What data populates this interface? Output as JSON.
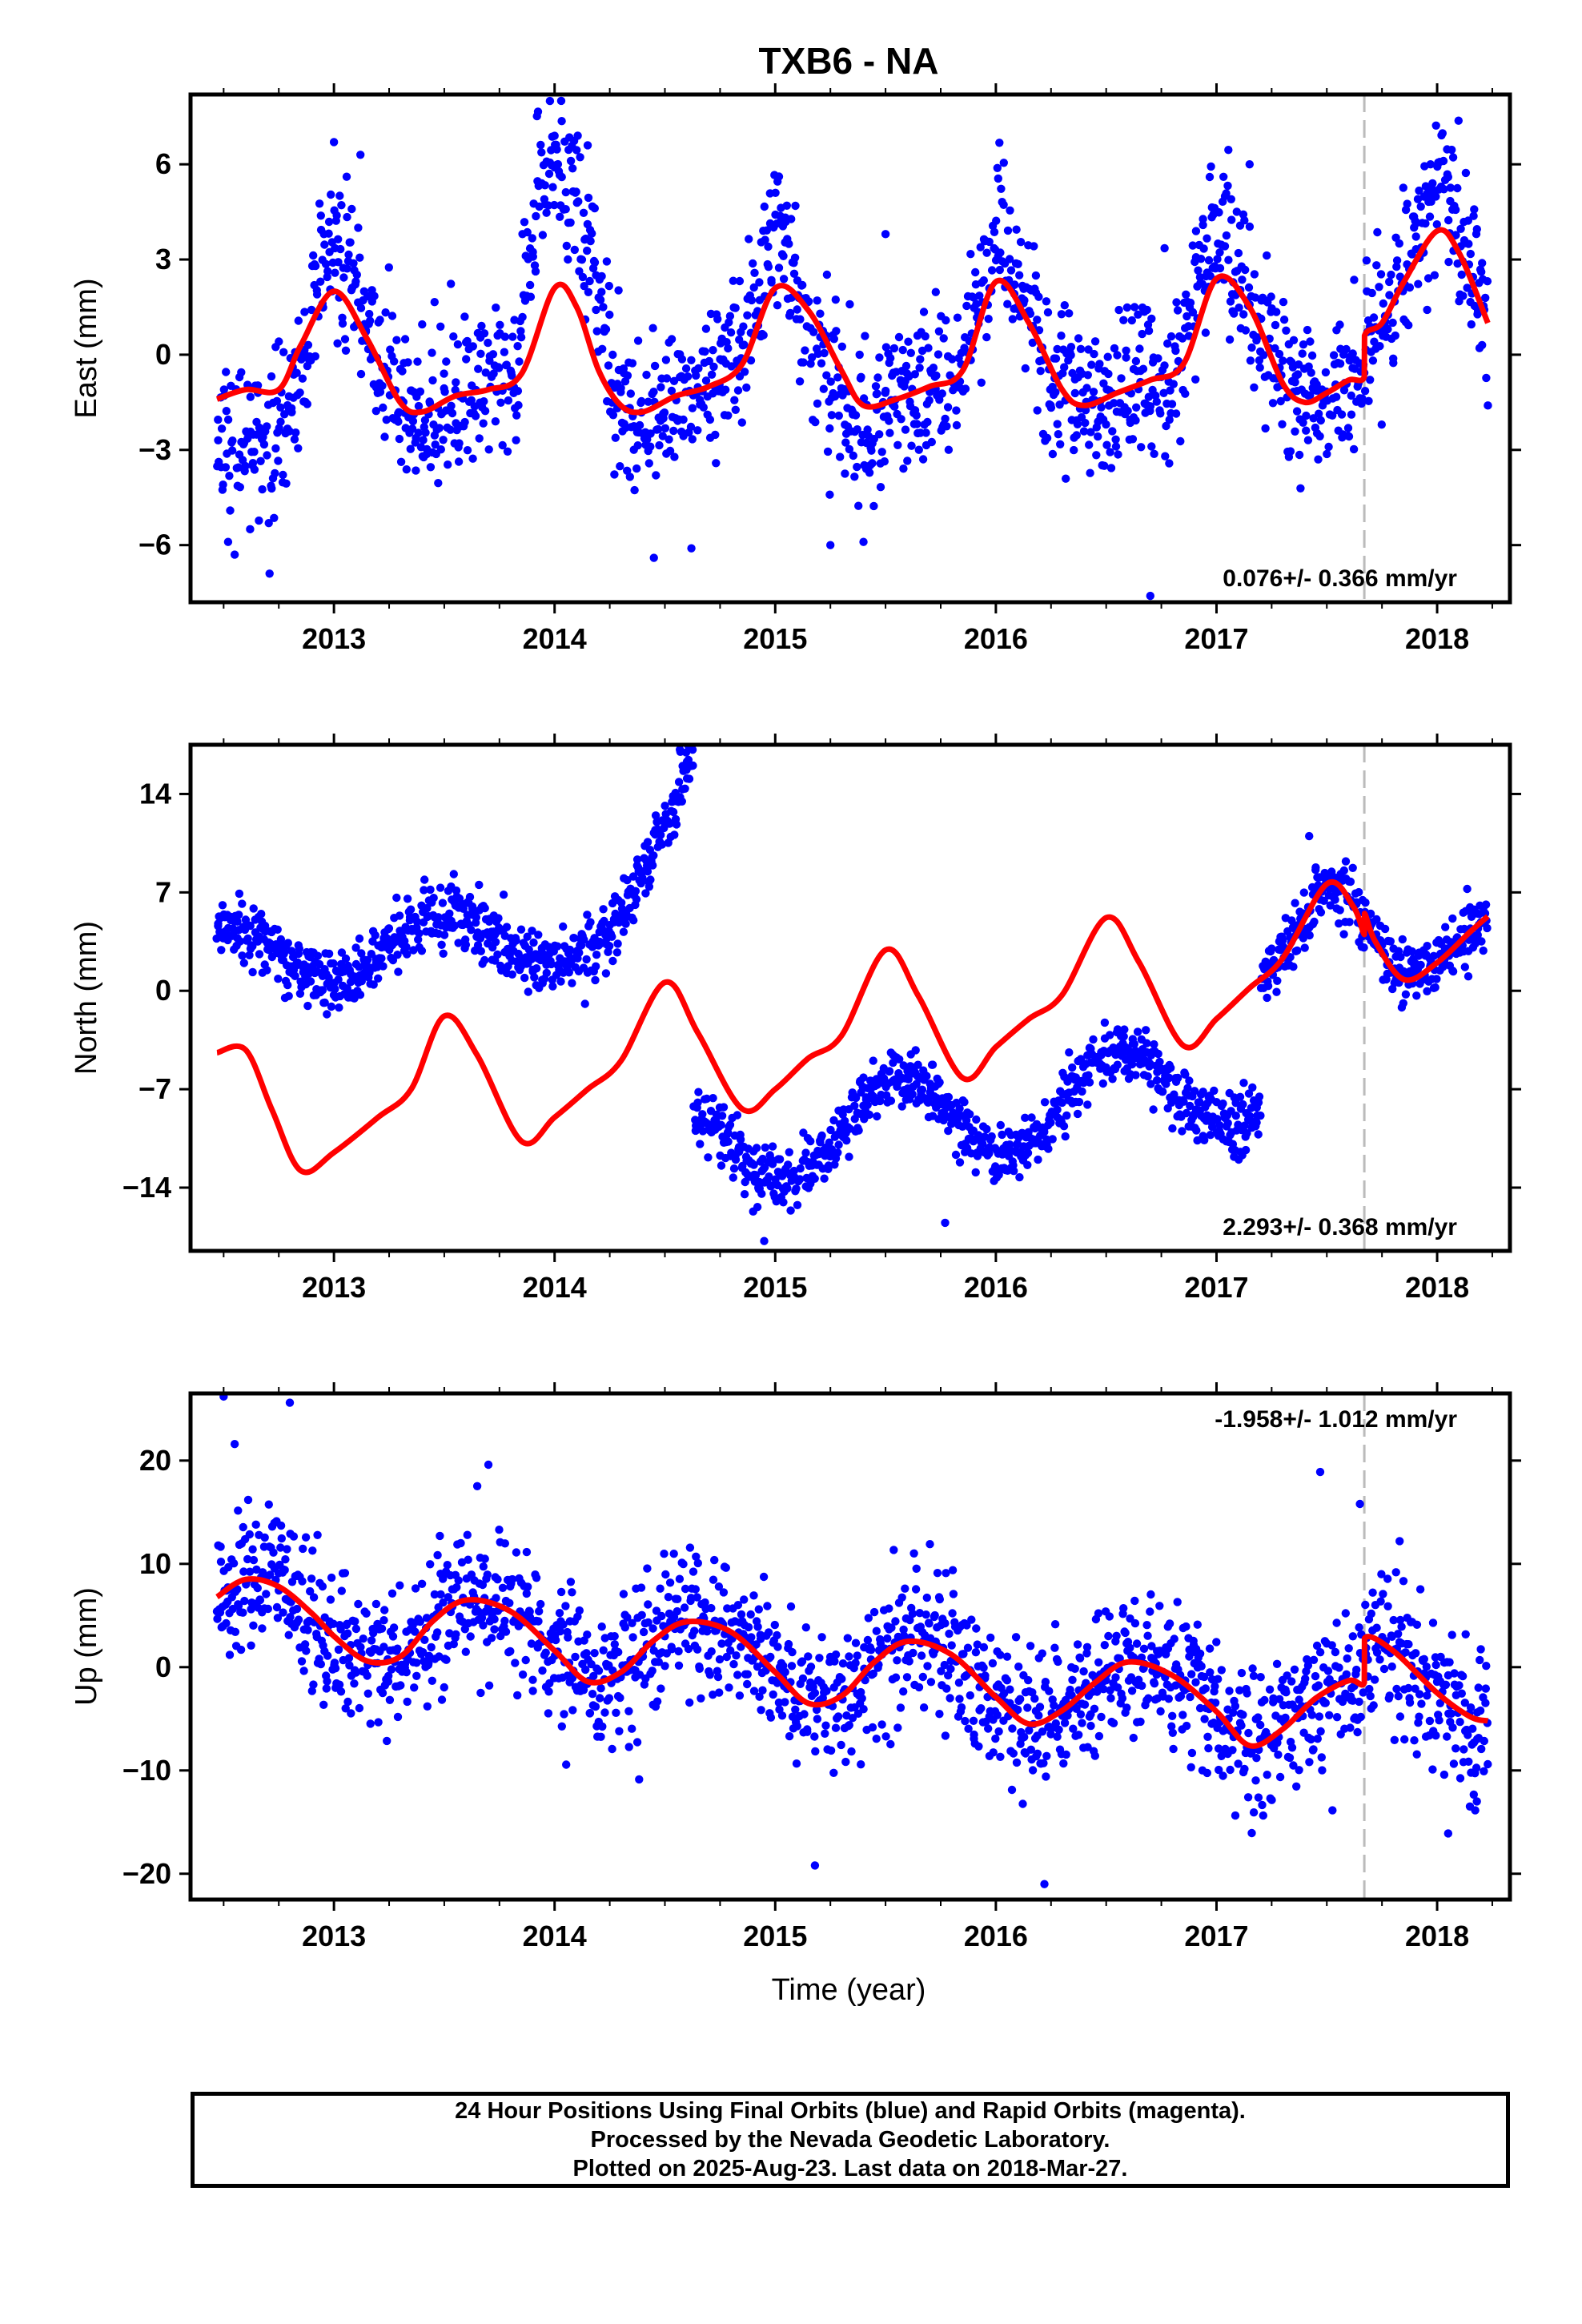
{
  "title": "TXB6 - NA",
  "xlabel": "Time (year)",
  "colors": {
    "final_orbits": "#0000ff",
    "model": "#ff0000",
    "offset_line": "#bbbbbb",
    "axes": "#000000"
  },
  "chart_data": [
    {
      "type": "scatter",
      "panel": "east",
      "ylabel": "East (mm)",
      "xlim": [
        2012.35,
        2018.33
      ],
      "ylim": [
        -7.8,
        8.2
      ],
      "yticks": [
        6,
        3,
        0,
        -3,
        -6
      ],
      "ytick_labels": [
        "6",
        "3",
        "0",
        "−3",
        "−6"
      ],
      "xticks": [
        2013,
        2014,
        2015,
        2016,
        2017,
        2018
      ],
      "xtick_labels": [
        "2013",
        "2014",
        "2015",
        "2016",
        "2017",
        "2018"
      ],
      "rate_label": "0.076+/- 0.366 mm/yr",
      "offset_epoch": 2017.67,
      "data_start": 2012.47,
      "data_end": 2018.23,
      "model_curve": {
        "name": "",
        "x": [
          2012.47,
          2012.6,
          2012.75,
          2012.85,
          2013.0,
          2013.15,
          2013.3,
          2013.4,
          2013.55,
          2013.7,
          2013.85,
          2014.0,
          2014.1,
          2014.2,
          2014.3,
          2014.4,
          2014.55,
          2014.7,
          2014.85,
          2015.0,
          2015.15,
          2015.3,
          2015.4,
          2015.55,
          2015.7,
          2015.85,
          2016.0,
          2016.15,
          2016.3,
          2016.4,
          2016.55,
          2016.7,
          2016.85,
          2017.0,
          2017.15,
          2017.3,
          2017.4,
          2017.5,
          2017.6,
          2017.67,
          2017.671,
          2017.75,
          2017.85,
          2018.0,
          2018.1,
          2018.23
        ],
        "y": [
          -1.4,
          -1.1,
          -1.1,
          0.3,
          2.0,
          0.5,
          -1.5,
          -1.8,
          -1.3,
          -1.1,
          -0.6,
          2.1,
          1.5,
          -0.5,
          -1.6,
          -1.8,
          -1.3,
          -1.0,
          -0.3,
          2.1,
          1.4,
          -0.5,
          -1.6,
          -1.4,
          -1.0,
          -0.5,
          2.3,
          1.0,
          -1.1,
          -1.6,
          -1.2,
          -0.8,
          -0.3,
          2.4,
          1.5,
          -0.9,
          -1.5,
          -1.2,
          -0.8,
          -0.7,
          0.6,
          1.0,
          2.3,
          3.9,
          3.2,
          1.0
        ]
      },
      "data_points": {
        "name": "",
        "observed": [
          {
            "x": 2012.55,
            "y": -6.3
          },
          {
            "x": 2012.62,
            "y": -5.5
          },
          {
            "x": 2013.0,
            "y": 6.7
          },
          {
            "x": 2013.12,
            "y": 6.3
          },
          {
            "x": 2014.0,
            "y": 6.9
          },
          {
            "x": 2014.03,
            "y": 8.0
          },
          {
            "x": 2014.15,
            "y": 6.6
          },
          {
            "x": 2014.45,
            "y": -6.4
          },
          {
            "x": 2014.62,
            "y": -6.1
          },
          {
            "x": 2015.25,
            "y": -6.0
          },
          {
            "x": 2015.4,
            "y": -5.9
          },
          {
            "x": 2015.5,
            "y": 3.8
          },
          {
            "x": 2016.7,
            "y": -7.6
          },
          {
            "x": 2017.15,
            "y": 6.0
          },
          {
            "x": 2017.97,
            "y": 6.0
          },
          {
            "x": 2018.05,
            "y": 5.6
          },
          {
            "x": 2018.23,
            "y": -1.6
          }
        ],
        "scatter_sd": 1.2
      }
    },
    {
      "type": "scatter",
      "panel": "north",
      "ylabel": "North (mm)",
      "xlim": [
        2012.35,
        2018.33
      ],
      "ylim": [
        -18.5,
        17.5
      ],
      "yticks": [
        14,
        7,
        0,
        -7,
        -14
      ],
      "ytick_labels": [
        "14",
        "7",
        "0",
        "−7",
        "−14"
      ],
      "xticks": [
        2013,
        2014,
        2015,
        2016,
        2017,
        2018
      ],
      "xtick_labels": [
        "2013",
        "2014",
        "2015",
        "2016",
        "2017",
        "2018"
      ],
      "rate_label": "2.293+/- 0.368 mm/yr",
      "offset_epoch": 2017.67,
      "data_start": 2012.47,
      "data_end": 2018.23,
      "model_curve": {
        "name": "",
        "x": [
          2012.47,
          2012.6,
          2012.72,
          2012.85,
          2013.0,
          2013.2,
          2013.35,
          2013.5,
          2013.65,
          2013.85,
          2014.0,
          2014.15,
          2014.3,
          2014.5,
          2014.65,
          2014.85,
          2015.0,
          2015.15,
          2015.3,
          2015.5,
          2015.65,
          2015.85,
          2016.0,
          2016.15,
          2016.3,
          2016.5,
          2016.65,
          2016.85,
          2017.0,
          2017.15,
          2017.3,
          2017.5,
          2017.62,
          2017.67,
          2017.671,
          2017.72,
          2017.85,
          2018.0,
          2018.15,
          2018.23
        ],
        "y": [
          -4.4,
          -4.2,
          -8.5,
          -12.8,
          -11.5,
          -9.0,
          -7.0,
          -1.8,
          -4.6,
          -10.7,
          -9.0,
          -7.0,
          -5.0,
          0.6,
          -3.0,
          -8.4,
          -7.0,
          -4.8,
          -3.2,
          2.9,
          -0.4,
          -6.2,
          -4.0,
          -2.0,
          -0.3,
          5.2,
          2.0,
          -3.9,
          -2.0,
          0.2,
          2.3,
          7.6,
          6.0,
          4.0,
          5.5,
          3.5,
          0.8,
          2.0,
          4.2,
          5.3
        ]
      },
      "data_points": {
        "name": "",
        "observed": [
          {
            "x": 2014.57,
            "y": 17.0
          },
          {
            "x": 2014.6,
            "y": 16.3
          },
          {
            "x": 2014.6,
            "y": 15.1
          },
          {
            "x": 2014.95,
            "y": -17.8
          },
          {
            "x": 2014.9,
            "y": -15.7
          },
          {
            "x": 2015.77,
            "y": -16.5
          },
          {
            "x": 2017.42,
            "y": 11.0
          }
        ],
        "scatter_sd": 1.1
      }
    },
    {
      "type": "scatter",
      "panel": "up",
      "ylabel": "Up (mm)",
      "xlim": [
        2012.35,
        2018.33
      ],
      "ylim": [
        -22.5,
        26.5
      ],
      "yticks": [
        20,
        10,
        0,
        -10,
        -20
      ],
      "ytick_labels": [
        "20",
        "10",
        "0",
        "−10",
        "−20"
      ],
      "xticks": [
        2013,
        2014,
        2015,
        2016,
        2017,
        2018
      ],
      "xtick_labels": [
        "2013",
        "2014",
        "2015",
        "2016",
        "2017",
        "2018"
      ],
      "rate_label": "-1.958+/- 1.012 mm/yr",
      "offset_epoch": 2017.67,
      "data_start": 2012.47,
      "data_end": 2018.23,
      "model_curve": {
        "name": "",
        "x": [
          2012.47,
          2012.6,
          2012.75,
          2012.9,
          2013.0,
          2013.15,
          2013.3,
          2013.45,
          2013.6,
          2013.8,
          2014.0,
          2014.15,
          2014.3,
          2014.45,
          2014.6,
          2014.8,
          2015.0,
          2015.15,
          2015.3,
          2015.45,
          2015.6,
          2015.8,
          2016.0,
          2016.15,
          2016.3,
          2016.45,
          2016.6,
          2016.8,
          2017.0,
          2017.15,
          2017.3,
          2017.45,
          2017.6,
          2017.67,
          2017.671,
          2017.8,
          2018.0,
          2018.15,
          2018.23
        ],
        "y": [
          6.8,
          8.5,
          7.8,
          5.2,
          3.0,
          0.6,
          1.0,
          4.5,
          6.5,
          5.4,
          1.6,
          -1.4,
          -0.5,
          2.6,
          4.4,
          3.4,
          -0.5,
          -3.5,
          -2.8,
          0.5,
          2.5,
          1.2,
          -2.9,
          -5.5,
          -4.2,
          -1.5,
          0.5,
          -0.8,
          -4.3,
          -7.6,
          -6.0,
          -3.0,
          -1.3,
          -1.5,
          2.8,
          1.6,
          -2.5,
          -4.8,
          -5.2
        ]
      },
      "data_points": {
        "name": "",
        "observed": [
          {
            "x": 2012.5,
            "y": 26.2
          },
          {
            "x": 2012.8,
            "y": 25.6
          },
          {
            "x": 2012.55,
            "y": 21.6
          },
          {
            "x": 2013.7,
            "y": 19.6
          },
          {
            "x": 2015.18,
            "y": -19.2
          },
          {
            "x": 2016.22,
            "y": -21.0
          },
          {
            "x": 2017.47,
            "y": 18.9
          },
          {
            "x": 2017.65,
            "y": 15.8
          },
          {
            "x": 2017.83,
            "y": 12.2
          },
          {
            "x": 2018.05,
            "y": -16.1
          },
          {
            "x": 2018.18,
            "y": -13.0
          }
        ],
        "scatter_sd": 3.5
      }
    }
  ],
  "caption": {
    "line1": "24 Hour Positions Using Final Orbits (blue) and Rapid Orbits (magenta).",
    "line2": "Processed by the Nevada Geodetic Laboratory.",
    "line3": "Plotted on 2025-Aug-23. Last data on 2018-Mar-27."
  }
}
